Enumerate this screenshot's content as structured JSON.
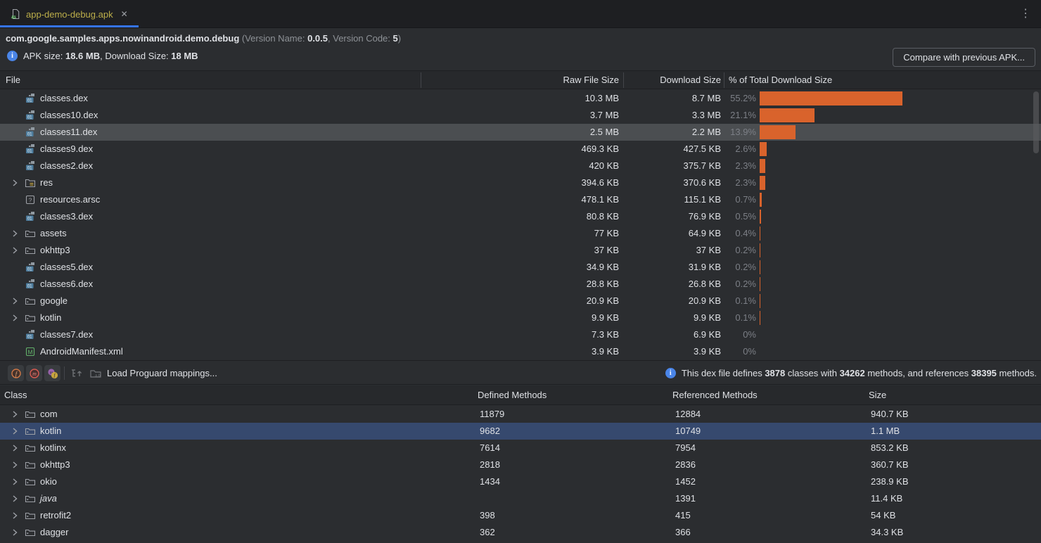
{
  "tab": {
    "label": "app-demo-debug.apk",
    "close_icon": "x",
    "menu_icon": "kebab"
  },
  "header": {
    "package_name": "com.google.samples.apps.nowinandroid.demo.debug",
    "ver_open": " (Version Name: ",
    "version_name": "0.0.5",
    "ver_mid": ", Version Code: ",
    "version_code": "5",
    "ver_close": ")",
    "apk_label1": "APK size: ",
    "apk_size": "18.6 MB",
    "apk_label2": ", Download Size: ",
    "download_size": "18 MB",
    "compare_button_label": "Compare with previous APK..."
  },
  "files": {
    "columns": [
      "File",
      "Raw File Size",
      "Download Size",
      "% of Total Download Size"
    ],
    "rows": [
      {
        "name": "classes.dex",
        "icon": "dex",
        "expandable": false,
        "raw": "10.3 MB",
        "download": "8.7 MB",
        "pct": "55.2%",
        "pct_value": 55.2,
        "selected": false
      },
      {
        "name": "classes10.dex",
        "icon": "dex",
        "expandable": false,
        "raw": "3.7 MB",
        "download": "3.3 MB",
        "pct": "21.1%",
        "pct_value": 21.1,
        "selected": false
      },
      {
        "name": "classes11.dex",
        "icon": "dex",
        "expandable": false,
        "raw": "2.5 MB",
        "download": "2.2 MB",
        "pct": "13.9%",
        "pct_value": 13.9,
        "selected": true
      },
      {
        "name": "classes9.dex",
        "icon": "dex",
        "expandable": false,
        "raw": "469.3 KB",
        "download": "427.5 KB",
        "pct": "2.6%",
        "pct_value": 2.6,
        "selected": false
      },
      {
        "name": "classes2.dex",
        "icon": "dex",
        "expandable": false,
        "raw": "420 KB",
        "download": "375.7 KB",
        "pct": "2.3%",
        "pct_value": 2.3,
        "selected": false
      },
      {
        "name": "res",
        "icon": "res-folder",
        "expandable": true,
        "raw": "394.6 KB",
        "download": "370.6 KB",
        "pct": "2.3%",
        "pct_value": 2.3,
        "selected": false
      },
      {
        "name": "resources.arsc",
        "icon": "arsc",
        "expandable": false,
        "raw": "478.1 KB",
        "download": "115.1 KB",
        "pct": "0.7%",
        "pct_value": 0.7,
        "selected": false
      },
      {
        "name": "classes3.dex",
        "icon": "dex",
        "expandable": false,
        "raw": "80.8 KB",
        "download": "76.9 KB",
        "pct": "0.5%",
        "pct_value": 0.5,
        "selected": false
      },
      {
        "name": "assets",
        "icon": "folder",
        "expandable": true,
        "raw": "77 KB",
        "download": "64.9 KB",
        "pct": "0.4%",
        "pct_value": 0.4,
        "selected": false
      },
      {
        "name": "okhttp3",
        "icon": "folder",
        "expandable": true,
        "raw": "37 KB",
        "download": "37 KB",
        "pct": "0.2%",
        "pct_value": 0.2,
        "selected": false
      },
      {
        "name": "classes5.dex",
        "icon": "dex",
        "expandable": false,
        "raw": "34.9 KB",
        "download": "31.9 KB",
        "pct": "0.2%",
        "pct_value": 0.2,
        "selected": false
      },
      {
        "name": "classes6.dex",
        "icon": "dex",
        "expandable": false,
        "raw": "28.8 KB",
        "download": "26.8 KB",
        "pct": "0.2%",
        "pct_value": 0.2,
        "selected": false
      },
      {
        "name": "google",
        "icon": "folder",
        "expandable": true,
        "raw": "20.9 KB",
        "download": "20.9 KB",
        "pct": "0.1%",
        "pct_value": 0.1,
        "selected": false
      },
      {
        "name": "kotlin",
        "icon": "folder",
        "expandable": true,
        "raw": "9.9 KB",
        "download": "9.9 KB",
        "pct": "0.1%",
        "pct_value": 0.1,
        "selected": false
      },
      {
        "name": "classes7.dex",
        "icon": "dex",
        "expandable": false,
        "raw": "7.3 KB",
        "download": "6.9 KB",
        "pct": "0%",
        "pct_value": 0,
        "selected": false
      },
      {
        "name": "AndroidManifest.xml",
        "icon": "manifest",
        "expandable": false,
        "raw": "3.9 KB",
        "download": "3.9 KB",
        "pct": "0%",
        "pct_value": 0,
        "selected": false
      }
    ]
  },
  "toolbar": {
    "buttons": [
      "show-fields",
      "show-methods",
      "show-referenced"
    ],
    "icons": [
      "expand-tree",
      "deobfuscate"
    ],
    "load_mappings_label": "Load Proguard mappings..."
  },
  "dex_info": {
    "t1": "This dex file defines ",
    "classes_count": "3878",
    "t2": " classes with ",
    "methods_count": "34262",
    "t3": " methods, and references ",
    "references_count": "38395",
    "t4": " methods."
  },
  "classes": {
    "columns": [
      "Class",
      "Defined Methods",
      "Referenced Methods",
      "Size"
    ],
    "rows": [
      {
        "name": "com",
        "italic": false,
        "defined": "11879",
        "referenced": "12884",
        "size": "940.7 KB",
        "selected": false
      },
      {
        "name": "kotlin",
        "italic": false,
        "defined": "9682",
        "referenced": "10749",
        "size": "1.1 MB",
        "selected": true
      },
      {
        "name": "kotlinx",
        "italic": false,
        "defined": "7614",
        "referenced": "7954",
        "size": "853.2 KB",
        "selected": false
      },
      {
        "name": "okhttp3",
        "italic": false,
        "defined": "2818",
        "referenced": "2836",
        "size": "360.7 KB",
        "selected": false
      },
      {
        "name": "okio",
        "italic": false,
        "defined": "1434",
        "referenced": "1452",
        "size": "238.9 KB",
        "selected": false
      },
      {
        "name": "java",
        "italic": true,
        "defined": "",
        "referenced": "1391",
        "size": "11.4 KB",
        "selected": false
      },
      {
        "name": "retrofit2",
        "italic": false,
        "defined": "398",
        "referenced": "415",
        "size": "54 KB",
        "selected": false
      },
      {
        "name": "dagger",
        "italic": false,
        "defined": "362",
        "referenced": "366",
        "size": "34.3 KB",
        "selected": false
      }
    ]
  },
  "colors": {
    "bar_orange": "#d9632c",
    "selection_blue": "#36496e",
    "selection_gray": "#4b4e51",
    "tab_accent_blue": "#3574f0",
    "tab_label_yellow": "#bcae4a",
    "info_blue": "#4a85e8"
  }
}
